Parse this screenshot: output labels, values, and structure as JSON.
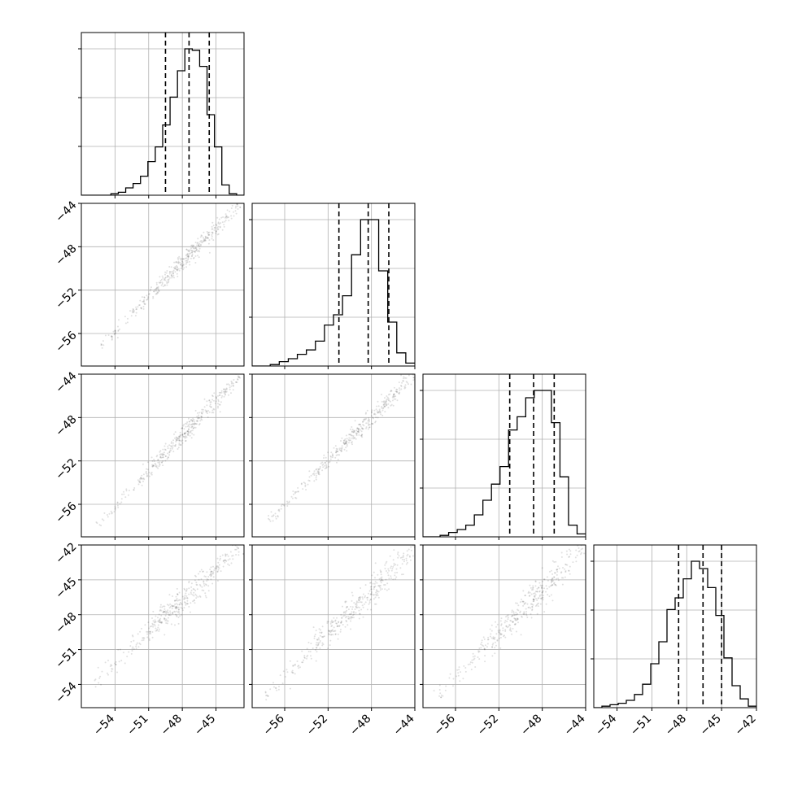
{
  "chart_data": {
    "type": "corner",
    "title": "",
    "parameters": [
      "",
      "",
      "",
      ""
    ],
    "grid": true,
    "quantile_lines": "dashed",
    "panels": [
      {
        "row": 0,
        "col": 0,
        "type": "histogram",
        "xlim": [
          -57,
          -42.5
        ],
        "quantiles": [
          -49.5,
          -47.4,
          -45.6
        ],
        "yticks": 3,
        "hist": [
          0,
          0,
          0,
          0,
          1,
          2,
          5,
          8,
          13,
          23,
          33,
          48,
          67,
          85,
          100,
          99,
          88,
          55,
          33,
          7,
          1,
          0
        ]
      },
      {
        "row": 1,
        "col": 0,
        "type": "scatter_contour",
        "xlim": [
          -57,
          -42.5
        ],
        "ylim": [
          -59,
          -44
        ],
        "yticks": [
          -44,
          -48,
          -52,
          -56
        ],
        "density_line": [
          [
            -55.5,
            -57.4
          ],
          [
            -43.0,
            -44.2
          ]
        ],
        "contour_extent": [
          [
            -49.8,
            -51.5
          ],
          [
            -45.2,
            -46.8
          ]
        ]
      },
      {
        "row": 1,
        "col": 1,
        "type": "histogram",
        "xlim": [
          -59,
          -44
        ],
        "quantiles": [
          -51.0,
          -48.3,
          -46.4
        ],
        "yticks": 3,
        "hist": [
          0,
          0,
          1,
          3,
          5,
          8,
          11,
          17,
          28,
          35,
          48,
          76,
          100,
          100,
          65,
          30,
          9,
          2
        ]
      },
      {
        "row": 2,
        "col": 0,
        "type": "scatter_contour",
        "xlim": [
          -57,
          -42.5
        ],
        "ylim": [
          -59,
          -44
        ],
        "yticks": [
          -44,
          -48,
          -52,
          -56
        ],
        "density_line": [
          [
            -55.5,
            -57.9
          ],
          [
            -43.0,
            -44.2
          ]
        ],
        "contour_extent": [
          [
            -50.8,
            -51.9
          ],
          [
            -44.8,
            -46.6
          ]
        ]
      },
      {
        "row": 2,
        "col": 1,
        "type": "scatter_contour",
        "xlim": [
          -59,
          -44
        ],
        "ylim": [
          -59,
          -44
        ],
        "yticks": [
          -44,
          -48,
          -52,
          -56
        ],
        "density_line": [
          [
            -57.4,
            -57.5
          ],
          [
            -44.1,
            -44.1
          ]
        ],
        "contour_extent": [
          [
            -52.0,
            -52.3
          ],
          [
            -46.1,
            -46.6
          ]
        ]
      },
      {
        "row": 2,
        "col": 2,
        "type": "histogram",
        "xlim": [
          -59,
          -44
        ],
        "quantiles": [
          -51.0,
          -48.8,
          -46.9
        ],
        "yticks": 3,
        "hist": [
          0,
          0,
          1,
          3,
          5,
          8,
          15,
          25,
          36,
          48,
          73,
          82,
          95,
          100,
          100,
          78,
          41,
          8,
          2
        ]
      },
      {
        "row": 3,
        "col": 0,
        "type": "scatter_contour",
        "xlim": [
          -57,
          -42.5
        ],
        "ylim": [
          -56,
          -42
        ],
        "yticks": [
          -42,
          -45,
          -48,
          -51,
          -54
        ],
        "density_line": [
          [
            -56.0,
            -54.0
          ],
          [
            -43.0,
            -42.3
          ]
        ],
        "contour_extent": [
          [
            -51.0,
            -49.5
          ],
          [
            -44.5,
            -43.5
          ]
        ]
      },
      {
        "row": 3,
        "col": 1,
        "type": "scatter_contour",
        "xlim": [
          -59,
          -44
        ],
        "ylim": [
          -56,
          -42
        ],
        "yticks": [
          -42,
          -45,
          -48,
          -51,
          -54
        ],
        "density_line": [
          [
            -58.0,
            -55.2
          ],
          [
            -44.0,
            -42.2
          ]
        ],
        "contour_extent": [
          [
            -52.3,
            -49.3
          ],
          [
            -45.8,
            -43.6
          ]
        ]
      },
      {
        "row": 3,
        "col": 2,
        "type": "scatter_contour",
        "xlim": [
          -59,
          -44
        ],
        "ylim": [
          -56,
          -42
        ],
        "yticks": [
          -42,
          -45,
          -48,
          -51,
          -54
        ],
        "density_line": [
          [
            -57.5,
            -55.0
          ],
          [
            -44.0,
            -42.0
          ]
        ],
        "contour_extent": [
          [
            -51.6,
            -48.9
          ],
          [
            -46.2,
            -43.5
          ]
        ]
      },
      {
        "row": 3,
        "col": 3,
        "type": "histogram",
        "xlim": [
          -56,
          -42
        ],
        "quantiles": [
          -48.7,
          -46.6,
          -45.0
        ],
        "yticks": 3,
        "hist": [
          0,
          1,
          2,
          3,
          5,
          9,
          16,
          30,
          45,
          67,
          75,
          88,
          100,
          95,
          82,
          63,
          34,
          15,
          6,
          1
        ]
      }
    ],
    "x_axes": [
      {
        "col": 0,
        "tick_labels": [
          "−54",
          "−51",
          "−48",
          "−45"
        ],
        "ticks": [
          -54,
          -51,
          -48,
          -45
        ]
      },
      {
        "col": 1,
        "tick_labels": [
          "−56",
          "−52",
          "−48",
          "−44"
        ],
        "ticks": [
          -56,
          -52,
          -48,
          -44
        ]
      },
      {
        "col": 2,
        "tick_labels": [
          "−56",
          "−52",
          "−48",
          "−44"
        ],
        "ticks": [
          -56,
          -52,
          -48,
          -44
        ]
      },
      {
        "col": 3,
        "tick_labels": [
          "−54",
          "−51",
          "−48",
          "−45",
          "−42"
        ],
        "ticks": [
          -54,
          -51,
          -48,
          -45,
          -42
        ]
      }
    ],
    "y_axes": [
      {
        "row": 1,
        "tick_labels": [
          "−44",
          "−48",
          "−52",
          "−56"
        ],
        "ticks": [
          -44,
          -48,
          -52,
          -56
        ]
      },
      {
        "row": 2,
        "tick_labels": [
          "−44",
          "−48",
          "−52",
          "−56"
        ],
        "ticks": [
          -44,
          -48,
          -52,
          -56
        ]
      },
      {
        "row": 3,
        "tick_labels": [
          "−42",
          "−45",
          "−48",
          "−51",
          "−54"
        ],
        "ticks": [
          -42,
          -45,
          -48,
          -51,
          -54
        ]
      }
    ]
  }
}
